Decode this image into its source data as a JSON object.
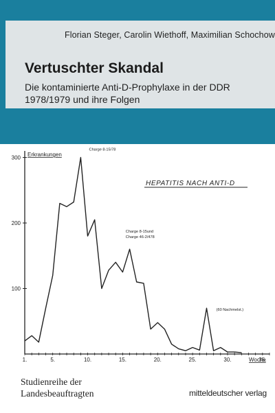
{
  "book": {
    "authors": "Florian Steger, Carolin Wiethoff, Maximilian Schochow",
    "title": "Vertuschter Skandal",
    "subtitle_line1": "Die kontaminierte Anti-D-Prophylaxe in der DDR",
    "subtitle_line2": "1978/1979 und ihre Folgen",
    "series_line1": "Studienreihe der",
    "series_line2": "Landesbeauftragten",
    "publisher": "mitteldeutscher verlag"
  },
  "colors": {
    "teal": "#1a7f9e",
    "panel": "#dfe4e6",
    "ink": "#222222"
  },
  "chart_data": {
    "type": "line",
    "title": "HEPATITIS NACH ANTI-D",
    "ylabel": "Erkrankungen",
    "xlabel": "Woche",
    "y_ticks": [
      "100",
      "200",
      "300"
    ],
    "x_ticks": [
      "1.",
      "5.",
      "10.",
      "15.",
      "20.",
      "25.",
      "30.",
      "35."
    ],
    "xlim": [
      1,
      36
    ],
    "ylim": [
      0,
      310
    ],
    "x": [
      1,
      2,
      3,
      4,
      5,
      6,
      7,
      8,
      9,
      10,
      11,
      12,
      13,
      14,
      15,
      16,
      17,
      18,
      19,
      20,
      21,
      22,
      23,
      24,
      25,
      26,
      27,
      28,
      29,
      30,
      31,
      32
    ],
    "values": [
      20,
      28,
      18,
      70,
      120,
      230,
      225,
      232,
      300,
      180,
      205,
      100,
      128,
      140,
      125,
      160,
      110,
      108,
      38,
      48,
      38,
      15,
      8,
      5,
      10,
      6,
      70,
      5,
      10,
      3,
      3,
      2
    ],
    "annotations": [
      {
        "text": "Charge 8-15/78",
        "x": 10,
        "y": 300
      },
      {
        "text": "Charge 8-15und",
        "x": 17,
        "y": 160
      },
      {
        "text": "Charge 46-2/478",
        "x": 17,
        "y": 160
      },
      {
        "text": "(60 Nachmelst.)",
        "x": 28,
        "y": 70
      }
    ],
    "grid": false
  }
}
